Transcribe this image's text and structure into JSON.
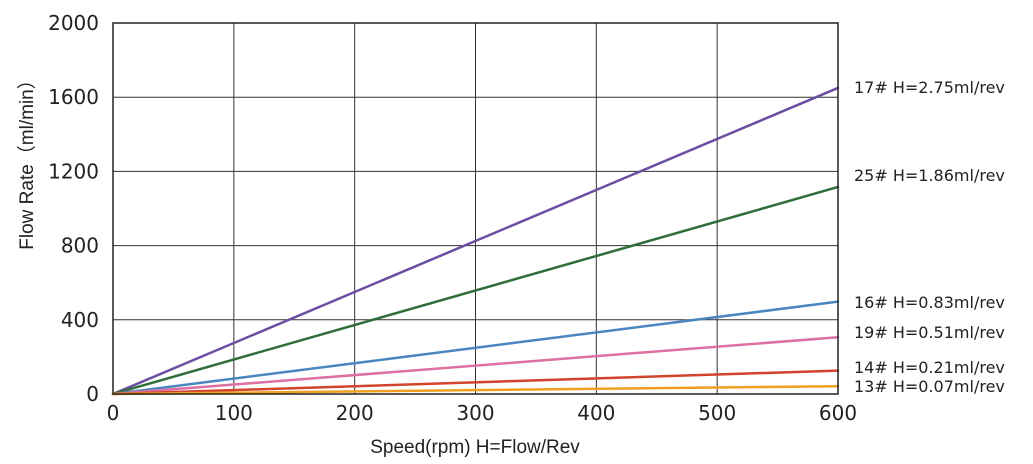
{
  "chart_data": {
    "type": "line",
    "title": "",
    "xlabel": "Speed(rpm) H=Flow/Rev",
    "ylabel": "Flow Rate（ml/min）",
    "xlim": [
      0,
      600
    ],
    "ylim": [
      0,
      2000
    ],
    "xticks": [
      0,
      100,
      200,
      300,
      400,
      500,
      600
    ],
    "yticks": [
      0,
      400,
      800,
      1200,
      1600,
      2000
    ],
    "grid": true,
    "series": [
      {
        "name": "17# H=2.75ml/rev",
        "color": "#6b4ea0",
        "x": [
          0,
          600
        ],
        "y": [
          0,
          1650
        ]
      },
      {
        "name": "25# H=1.86ml/rev",
        "color": "#2f6e3b",
        "x": [
          0,
          600
        ],
        "y": [
          0,
          1116
        ]
      },
      {
        "name": "16# H=0.83ml/rev",
        "color": "#4a86c0",
        "x": [
          0,
          600
        ],
        "y": [
          0,
          498
        ]
      },
      {
        "name": "19# H=0.51ml/rev",
        "color": "#de6fa1",
        "x": [
          0,
          600
        ],
        "y": [
          0,
          306
        ]
      },
      {
        "name": "14# H=0.21ml/rev",
        "color": "#d2452c",
        "x": [
          0,
          600
        ],
        "y": [
          0,
          126
        ]
      },
      {
        "name": "13# H=0.07ml/rev",
        "color": "#f0a020",
        "x": [
          0,
          600
        ],
        "y": [
          0,
          42
        ]
      }
    ]
  }
}
